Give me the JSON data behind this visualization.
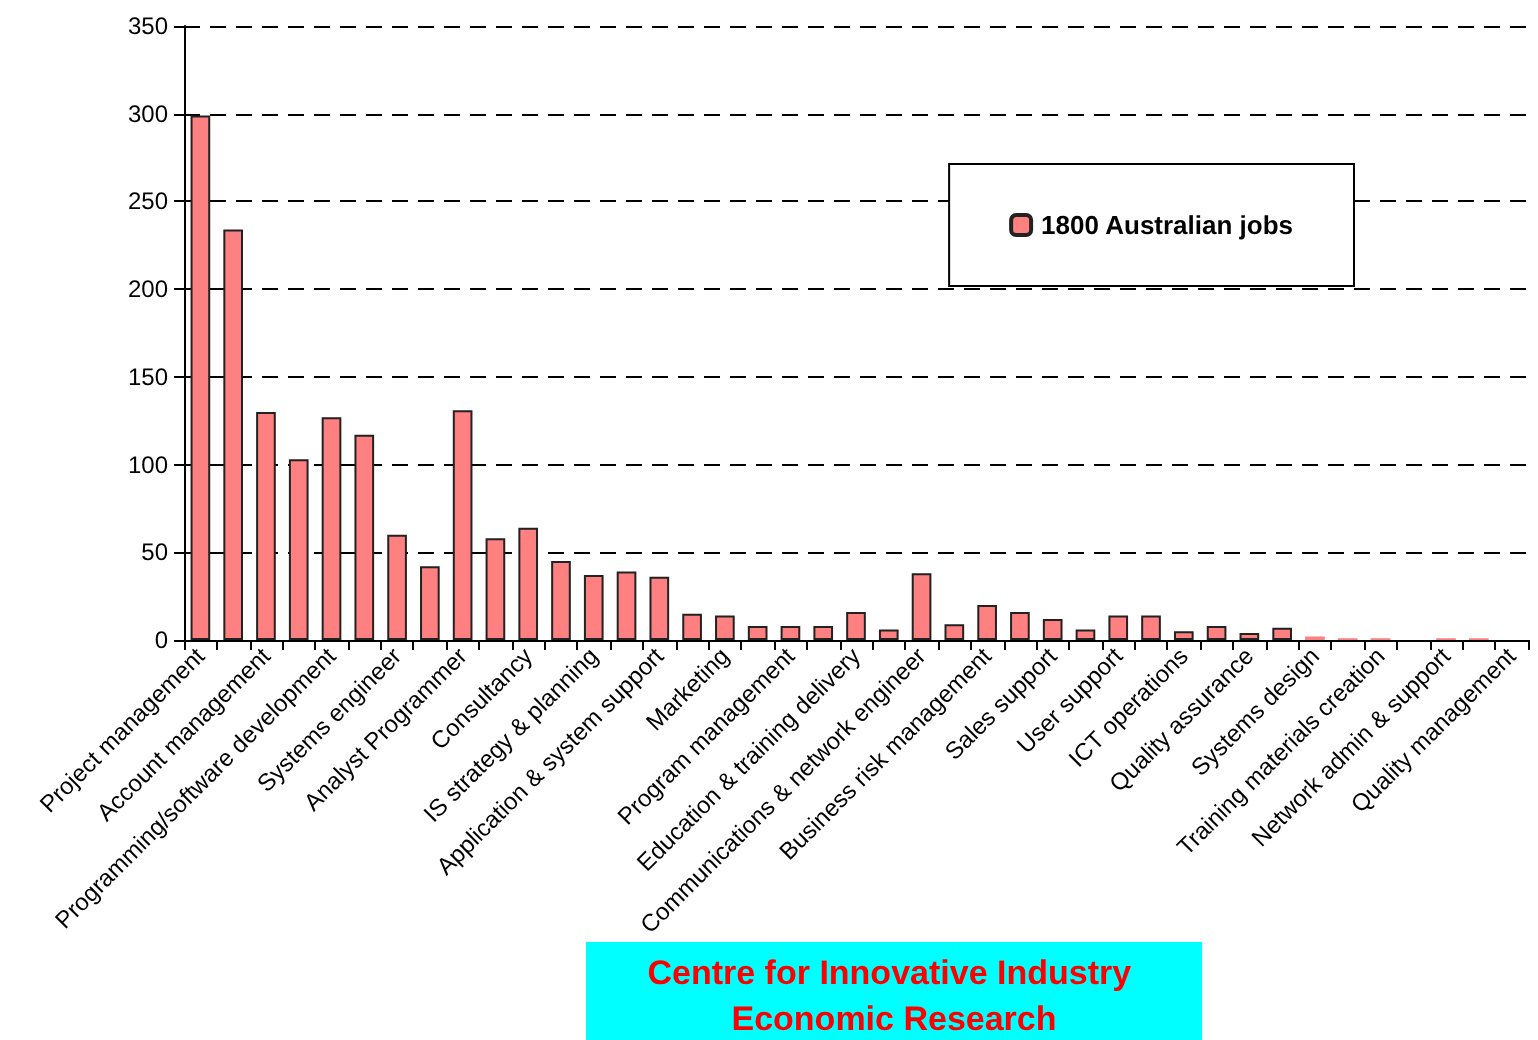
{
  "chart_data": {
    "type": "bar",
    "categories": [
      "Project management",
      null,
      "Account management",
      null,
      "Programming/software development",
      null,
      "Systems engineer",
      null,
      "Analyst Programmer",
      null,
      "Consultancy",
      null,
      "IS strategy & planning",
      null,
      "Application & system support",
      null,
      "Marketing",
      null,
      "Program management",
      null,
      "Education & training delivery",
      null,
      "Communications & network engineer",
      null,
      "Business risk management",
      null,
      "Sales support",
      null,
      "User support",
      null,
      "ICT operations",
      null,
      "Quality assurance",
      null,
      "Systems design",
      null,
      "Training materials creation",
      null,
      "Network admin & support",
      null,
      "Quality management"
    ],
    "series": [
      {
        "name": "1800 Australian jobs",
        "color": "#ff8080",
        "values": [
          299,
          234,
          130,
          103,
          127,
          117,
          60,
          42,
          131,
          58,
          64,
          45,
          37,
          39,
          36,
          15,
          14,
          8,
          8,
          8,
          16,
          6,
          38,
          9,
          20,
          16,
          12,
          6,
          14,
          14,
          5,
          8,
          4,
          7,
          2,
          1,
          1,
          0,
          1,
          1,
          null
        ]
      }
    ],
    "ylim": [
      0,
      350
    ],
    "yticks": [
      0,
      50,
      100,
      150,
      200,
      250,
      300,
      350
    ],
    "grid": "y",
    "legend": "top right",
    "annotations": [
      "Centre for Innovative Industry Economic Research"
    ]
  }
}
